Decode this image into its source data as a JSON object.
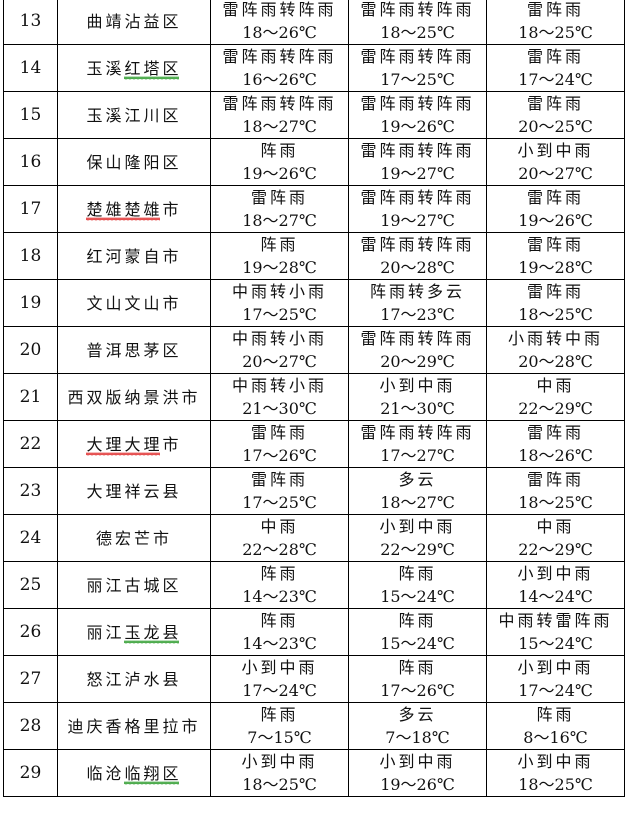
{
  "colors": {
    "spell_green": "#2e9c2e",
    "spell_red": "#e03030"
  },
  "rows": [
    {
      "no": "13",
      "location": "曲靖沾益区",
      "d1": {
        "w": "雷阵雨转阵雨",
        "t": "18～26℃"
      },
      "d2": {
        "w": "雷阵雨转阵雨",
        "t": "18～25℃"
      },
      "d3": {
        "w": "雷阵雨",
        "t": "18～25℃"
      }
    },
    {
      "no": "14",
      "location": "玉溪红塔区",
      "mark": "红塔区",
      "mark_color": "green",
      "d1": {
        "w": "雷阵雨转阵雨",
        "t": "16～26℃"
      },
      "d2": {
        "w": "雷阵雨转阵雨",
        "t": "17～25℃"
      },
      "d3": {
        "w": "雷阵雨",
        "t": "17～24℃"
      }
    },
    {
      "no": "15",
      "location": "玉溪江川区",
      "d1": {
        "w": "雷阵雨转阵雨",
        "t": "18～27℃"
      },
      "d2": {
        "w": "雷阵雨转阵雨",
        "t": "19～26℃"
      },
      "d3": {
        "w": "雷阵雨",
        "t": "20～25℃"
      }
    },
    {
      "no": "16",
      "location": "保山隆阳区",
      "d1": {
        "w": "阵雨",
        "t": "19～26℃"
      },
      "d2": {
        "w": "雷阵雨转阵雨",
        "t": "19～27℃"
      },
      "d3": {
        "w": "小到中雨",
        "t": "20～27℃"
      }
    },
    {
      "no": "17",
      "location": "楚雄楚雄市",
      "mark": "楚雄楚雄",
      "mark_color": "red",
      "d1": {
        "w": "雷阵雨",
        "t": "18～27℃"
      },
      "d2": {
        "w": "雷阵雨转阵雨",
        "t": "19～27℃"
      },
      "d3": {
        "w": "雷阵雨",
        "t": "19～26℃"
      }
    },
    {
      "no": "18",
      "location": "红河蒙自市",
      "d1": {
        "w": "阵雨",
        "t": "19～28℃"
      },
      "d2": {
        "w": "雷阵雨转阵雨",
        "t": "20～28℃"
      },
      "d3": {
        "w": "雷阵雨",
        "t": "19～28℃"
      }
    },
    {
      "no": "19",
      "location": "文山文山市",
      "d1": {
        "w": "中雨转小雨",
        "t": "17～25℃"
      },
      "d2": {
        "w": "阵雨转多云",
        "t": "17～23℃"
      },
      "d3": {
        "w": "雷阵雨",
        "t": "18～25℃"
      }
    },
    {
      "no": "20",
      "location": "普洱思茅区",
      "d1": {
        "w": "中雨转小雨",
        "t": "20～27℃"
      },
      "d2": {
        "w": "雷阵雨转阵雨",
        "t": "20～29℃"
      },
      "d3": {
        "w": "小雨转中雨",
        "t": "20～28℃"
      }
    },
    {
      "no": "21",
      "location": "西双版纳景洪市",
      "d1": {
        "w": "中雨转小雨",
        "t": "21～30℃"
      },
      "d2": {
        "w": "小到中雨",
        "t": "21～30℃"
      },
      "d3": {
        "w": "中雨",
        "t": "22～29℃"
      }
    },
    {
      "no": "22",
      "location": "大理大理市",
      "mark": "大理大理",
      "mark_color": "red",
      "d1": {
        "w": "雷阵雨",
        "t": "17～26℃"
      },
      "d2": {
        "w": "雷阵雨转阵雨",
        "t": "17～27℃"
      },
      "d3": {
        "w": "雷阵雨",
        "t": "18～26℃"
      }
    },
    {
      "no": "23",
      "location": "大理祥云县",
      "d1": {
        "w": "雷阵雨",
        "t": "17～25℃"
      },
      "d2": {
        "w": "多云",
        "t": "18～27℃"
      },
      "d3": {
        "w": "雷阵雨",
        "t": "18～25℃"
      }
    },
    {
      "no": "24",
      "location": "德宏芒市",
      "d1": {
        "w": "中雨",
        "t": "22～28℃"
      },
      "d2": {
        "w": "小到中雨",
        "t": "22～29℃"
      },
      "d3": {
        "w": "中雨",
        "t": "22～29℃"
      }
    },
    {
      "no": "25",
      "location": "丽江古城区",
      "d1": {
        "w": "阵雨",
        "t": "14～23℃"
      },
      "d2": {
        "w": "阵雨",
        "t": "15～24℃"
      },
      "d3": {
        "w": "小到中雨",
        "t": "14～24℃"
      }
    },
    {
      "no": "26",
      "location": "丽江玉龙县",
      "mark": "玉龙县",
      "mark_color": "green",
      "d1": {
        "w": "阵雨",
        "t": "14～23℃"
      },
      "d2": {
        "w": "阵雨",
        "t": "15～24℃"
      },
      "d3": {
        "w": "中雨转雷阵雨",
        "t": "15～24℃"
      }
    },
    {
      "no": "27",
      "location": "怒江泸水县",
      "d1": {
        "w": "小到中雨",
        "t": "17～24℃"
      },
      "d2": {
        "w": "阵雨",
        "t": "17～26℃"
      },
      "d3": {
        "w": "小到中雨",
        "t": "17～24℃"
      }
    },
    {
      "no": "28",
      "location": "迪庆香格里拉市",
      "d1": {
        "w": "阵雨",
        "t": "7～15℃"
      },
      "d2": {
        "w": "多云",
        "t": "7～18℃"
      },
      "d3": {
        "w": "阵雨",
        "t": "8～16℃"
      }
    },
    {
      "no": "29",
      "location": "临沧临翔区",
      "mark": "临翔区",
      "mark_color": "green",
      "d1": {
        "w": "小到中雨",
        "t": "18～25℃"
      },
      "d2": {
        "w": "小到中雨",
        "t": "19～26℃"
      },
      "d3": {
        "w": "小到中雨",
        "t": "18～25℃"
      }
    }
  ]
}
